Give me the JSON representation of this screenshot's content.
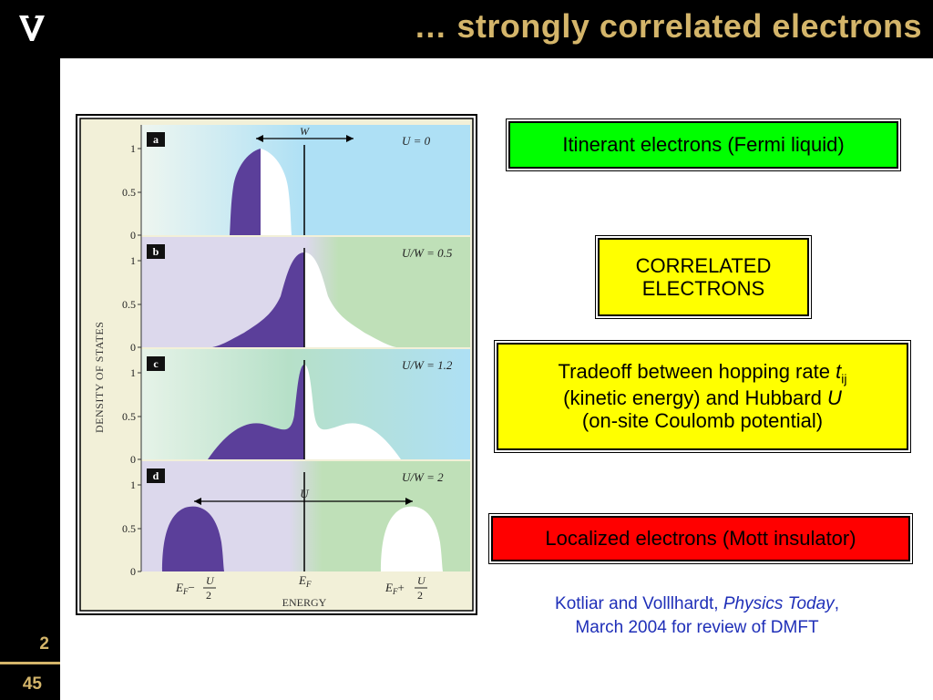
{
  "header": {
    "title": "… strongly correlated electrons",
    "logo": "V"
  },
  "footer": {
    "slide_number": "2",
    "total_slides": "45"
  },
  "figure": {
    "y_axis_label": "DENSITY OF STATES",
    "x_axis_label": "ENERGY",
    "ticks": [
      "0",
      "0.5",
      "1"
    ],
    "x_ticks": {
      "left": "E",
      "left_sub": "F",
      "left_minus": "−",
      "center": "E",
      "center_sub": "F",
      "right": "E",
      "right_sub": "F",
      "right_plus": "+",
      "frac_num": "U",
      "frac_den": "2"
    },
    "panels": [
      {
        "letter": "a",
        "param": "U = 0",
        "arrow_label": "W"
      },
      {
        "letter": "b",
        "param": "U/W = 0.5"
      },
      {
        "letter": "c",
        "param": "U/W = 1.2"
      },
      {
        "letter": "d",
        "param": "U/W = 2",
        "arrow_label": "U"
      }
    ],
    "colors": {
      "filled": "#5b3f9a",
      "blue": "#aee0f5",
      "green": "#bfe0b8",
      "lavender": "#dcd8ec",
      "cream": "#f2f0d8"
    }
  },
  "boxes": {
    "fermi": "Itinerant electrons (Fermi liquid)",
    "correlated_line1": "CORRELATED",
    "correlated_line2": "ELECTRONS",
    "tradeoff_line1_pre": "Tradeoff between hopping rate ",
    "tradeoff_t": "t",
    "tradeoff_sub": "ij",
    "tradeoff_line2_pre": "(kinetic energy) and Hubbard ",
    "tradeoff_U": "U",
    "tradeoff_line3": "(on-site Coulomb potential)",
    "mott": "Localized electrons (Mott insulator)"
  },
  "credit": {
    "authors": "Kotliar and Volllhardt, ",
    "journal": "Physics Today",
    "comma": ",",
    "line2": "March 2004 for review of DMFT"
  }
}
